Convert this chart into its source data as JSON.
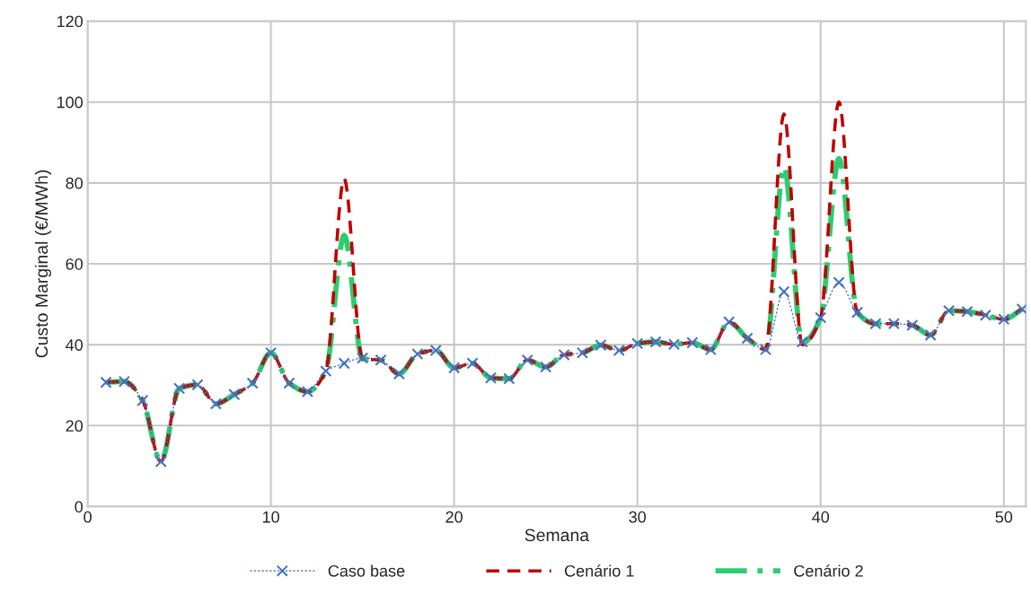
{
  "chart_data": {
    "type": "line",
    "xlabel": "Semana",
    "ylabel": "Custo Marginal (€/MWh)",
    "x": [
      1,
      2,
      3,
      4,
      5,
      6,
      7,
      8,
      9,
      10,
      11,
      12,
      13,
      14,
      15,
      16,
      17,
      18,
      19,
      20,
      21,
      22,
      23,
      24,
      25,
      26,
      27,
      28,
      29,
      30,
      31,
      32,
      33,
      34,
      35,
      36,
      37,
      38,
      39,
      40,
      41,
      42,
      43,
      44,
      45,
      46,
      47,
      48,
      49,
      50,
      51
    ],
    "xlim": [
      0,
      51.2
    ],
    "xticks": [
      0,
      10,
      20,
      30,
      40,
      50
    ],
    "ylim": [
      0,
      120
    ],
    "yticks": [
      0,
      20,
      40,
      60,
      80,
      100,
      120
    ],
    "grid": true,
    "legend": "bottom",
    "series": [
      {
        "name": "Caso base",
        "color": "#4472c4",
        "line_style": "dotted",
        "marker": "cross",
        "values": [
          30.7,
          30.9,
          26.2,
          11.1,
          29.2,
          30.1,
          25.4,
          27.7,
          30.5,
          38.0,
          30.5,
          28.4,
          33.5,
          35.4,
          36.7,
          36.2,
          32.8,
          37.7,
          38.6,
          34.3,
          35.4,
          31.8,
          31.6,
          36.2,
          34.5,
          37.5,
          38.0,
          39.9,
          38.6,
          40.3,
          40.7,
          40.1,
          40.5,
          38.8,
          45.6,
          41.6,
          38.8,
          53.1,
          40.7,
          46.7,
          55.4,
          48.0,
          45.2,
          45.2,
          44.8,
          42.4,
          48.4,
          48.2,
          47.3,
          46.3,
          48.8
        ]
      },
      {
        "name": "Cenário 1",
        "color": "#c00000",
        "line_style": "dashed",
        "marker": "none",
        "values": [
          30.7,
          30.9,
          26.2,
          11.1,
          29.2,
          30.1,
          25.4,
          27.7,
          30.5,
          38.0,
          30.5,
          28.4,
          33.5,
          81.0,
          36.5,
          36.2,
          32.8,
          37.7,
          38.6,
          34.3,
          35.4,
          31.8,
          31.6,
          36.2,
          34.5,
          37.5,
          38.0,
          39.9,
          38.6,
          40.3,
          40.7,
          40.1,
          40.5,
          38.8,
          45.6,
          41.6,
          38.8,
          97.0,
          40.0,
          46.7,
          100.0,
          48.0,
          45.2,
          45.2,
          44.8,
          42.4,
          48.4,
          48.2,
          47.3,
          46.3,
          48.8
        ]
      },
      {
        "name": "Cenário 2",
        "color": "#2ecc71",
        "line_style": "dashdot",
        "marker": "none",
        "values": [
          30.7,
          30.9,
          26.2,
          11.1,
          29.2,
          30.1,
          25.4,
          27.7,
          30.5,
          38.0,
          30.5,
          28.4,
          33.5,
          67.0,
          36.5,
          36.2,
          32.8,
          37.7,
          38.6,
          34.3,
          35.4,
          31.8,
          31.6,
          36.2,
          34.5,
          37.5,
          38.0,
          39.9,
          38.6,
          40.3,
          40.7,
          40.1,
          40.5,
          38.8,
          45.6,
          41.6,
          38.8,
          84.0,
          40.5,
          46.7,
          86.0,
          48.0,
          45.2,
          45.2,
          44.8,
          42.4,
          48.4,
          48.2,
          47.3,
          46.3,
          48.8
        ]
      }
    ]
  }
}
